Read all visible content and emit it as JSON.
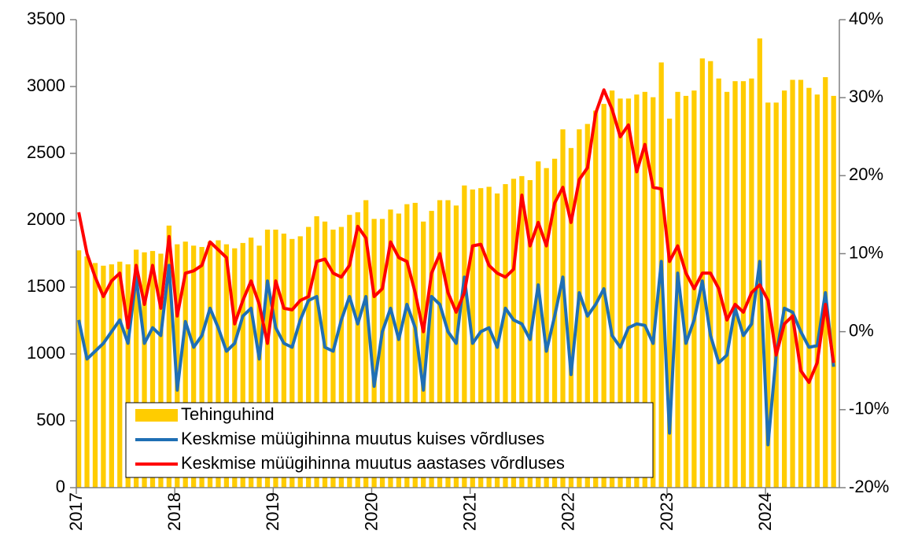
{
  "chart_data": {
    "type": "bar",
    "categories": [
      "2017",
      null,
      null,
      null,
      null,
      null,
      null,
      null,
      null,
      null,
      null,
      null,
      "2018",
      null,
      null,
      null,
      null,
      null,
      null,
      null,
      null,
      null,
      null,
      null,
      "2019",
      null,
      null,
      null,
      null,
      null,
      null,
      null,
      null,
      null,
      null,
      null,
      "2020",
      null,
      null,
      null,
      null,
      null,
      null,
      null,
      null,
      null,
      null,
      null,
      "2021",
      null,
      null,
      null,
      null,
      null,
      null,
      null,
      null,
      null,
      null,
      null,
      "2022",
      null,
      null,
      null,
      null,
      null,
      null,
      null,
      null,
      null,
      null,
      null,
      "2023",
      null,
      null,
      null,
      null,
      null,
      null,
      null,
      null,
      null,
      null,
      null,
      "2024",
      null,
      null,
      null,
      null,
      null,
      null,
      null,
      null
    ],
    "series": [
      {
        "name": "Tehinguhind",
        "type": "bar",
        "color": "#ffcc00",
        "values": [
          1775,
          1730,
          1680,
          1660,
          1670,
          1690,
          1670,
          1780,
          1760,
          1770,
          1750,
          1960,
          1820,
          1840,
          1810,
          1800,
          1840,
          1850,
          1820,
          1790,
          1830,
          1870,
          1810,
          1930,
          1930,
          1900,
          1860,
          1880,
          1950,
          2030,
          1990,
          1930,
          1950,
          2040,
          2060,
          2150,
          2010,
          2010,
          2080,
          2050,
          2120,
          2130,
          1990,
          2070,
          2150,
          2150,
          2110,
          2260,
          2230,
          2240,
          2250,
          2200,
          2270,
          2310,
          2330,
          2300,
          2440,
          2390,
          2460,
          2680,
          2540,
          2680,
          2720,
          2820,
          2870,
          2970,
          2910,
          2910,
          2940,
          2960,
          2920,
          3180,
          2760,
          2960,
          2930,
          2970,
          3210,
          3190,
          3060,
          2960,
          3040,
          3040,
          3060,
          3360,
          2880,
          2880,
          2970,
          3050,
          3050,
          2990,
          2940,
          3070,
          2930
        ]
      },
      {
        "name": "Keskmise müügihinna muutus kuises võrdluses",
        "type": "line",
        "axis": "y2",
        "color": "#1f6fb4",
        "values": [
          1.5,
          -3.5,
          -2.5,
          -1.5,
          0,
          1.5,
          -1.5,
          7,
          -1.5,
          0.5,
          -0.5,
          8.5,
          -7.5,
          1.3,
          -2,
          -0.5,
          3,
          0.5,
          -2.5,
          -1.5,
          2,
          3,
          -3.5,
          6.5,
          0.5,
          -1.5,
          -2,
          1.5,
          4,
          4.5,
          -2,
          -2.5,
          1.5,
          4.5,
          1,
          4.5,
          -7,
          0,
          3,
          -1,
          3.5,
          0.5,
          -7.5,
          4.5,
          3.5,
          0,
          -1.5,
          7,
          -1.5,
          0,
          0.5,
          -2,
          3,
          1.5,
          1,
          -1,
          6,
          -2.5,
          2,
          7,
          -5.5,
          5,
          2,
          3.5,
          5.5,
          -0.5,
          -2,
          0.5,
          1,
          0.8,
          -1.5,
          9,
          -13,
          7.5,
          -1.5,
          1.5,
          6.5,
          -0.5,
          -4,
          -3,
          3,
          -0.5,
          1,
          9,
          -14.5,
          -3,
          3,
          2.5,
          0,
          -2,
          -1.8,
          5,
          -4.5
        ]
      },
      {
        "name": "Keskmise müügihinna muutus aastases võrdluses",
        "type": "line",
        "axis": "y2",
        "color": "#ff0000",
        "values": [
          15.3,
          10,
          7,
          4.5,
          6.5,
          7.5,
          0.5,
          8.5,
          3.5,
          8.5,
          3,
          12.2,
          2,
          7.5,
          7.8,
          8.5,
          11.5,
          10.5,
          9.5,
          1,
          4,
          6.5,
          3.5,
          -1.5,
          6.5,
          3,
          2.8,
          4,
          4.5,
          9,
          9.3,
          7.5,
          7,
          8.5,
          13.5,
          12,
          4.5,
          5.5,
          11.5,
          9.5,
          9,
          5,
          0,
          7.5,
          10,
          5,
          2.5,
          5,
          11,
          11.2,
          8.5,
          7.5,
          7,
          8,
          17.5,
          11,
          14,
          11,
          16.5,
          18.5,
          14,
          19.5,
          21,
          28,
          31,
          28.5,
          25,
          26.5,
          20.5,
          24,
          18.5,
          18.3,
          9,
          11,
          7.5,
          5.5,
          7.5,
          7.5,
          5.5,
          1.5,
          3.5,
          2.5,
          5,
          6,
          4,
          -3,
          1,
          2,
          -5,
          -6.5,
          -4,
          3.5,
          -4
        ]
      }
    ],
    "ylim": [
      0,
      3500
    ],
    "yticks": [
      0,
      500,
      1000,
      1500,
      2000,
      2500,
      3000,
      3500
    ],
    "y2lim": [
      -20,
      40
    ],
    "y2ticks": [
      {
        "value": -20,
        "label": "-20%"
      },
      {
        "value": -10,
        "label": "-10%"
      },
      {
        "value": 0,
        "label": "0%"
      },
      {
        "value": 10,
        "label": "10%"
      },
      {
        "value": 20,
        "label": "20%"
      },
      {
        "value": 30,
        "label": "30%"
      },
      {
        "value": 40,
        "label": "40%"
      }
    ],
    "legend": "lower left"
  }
}
